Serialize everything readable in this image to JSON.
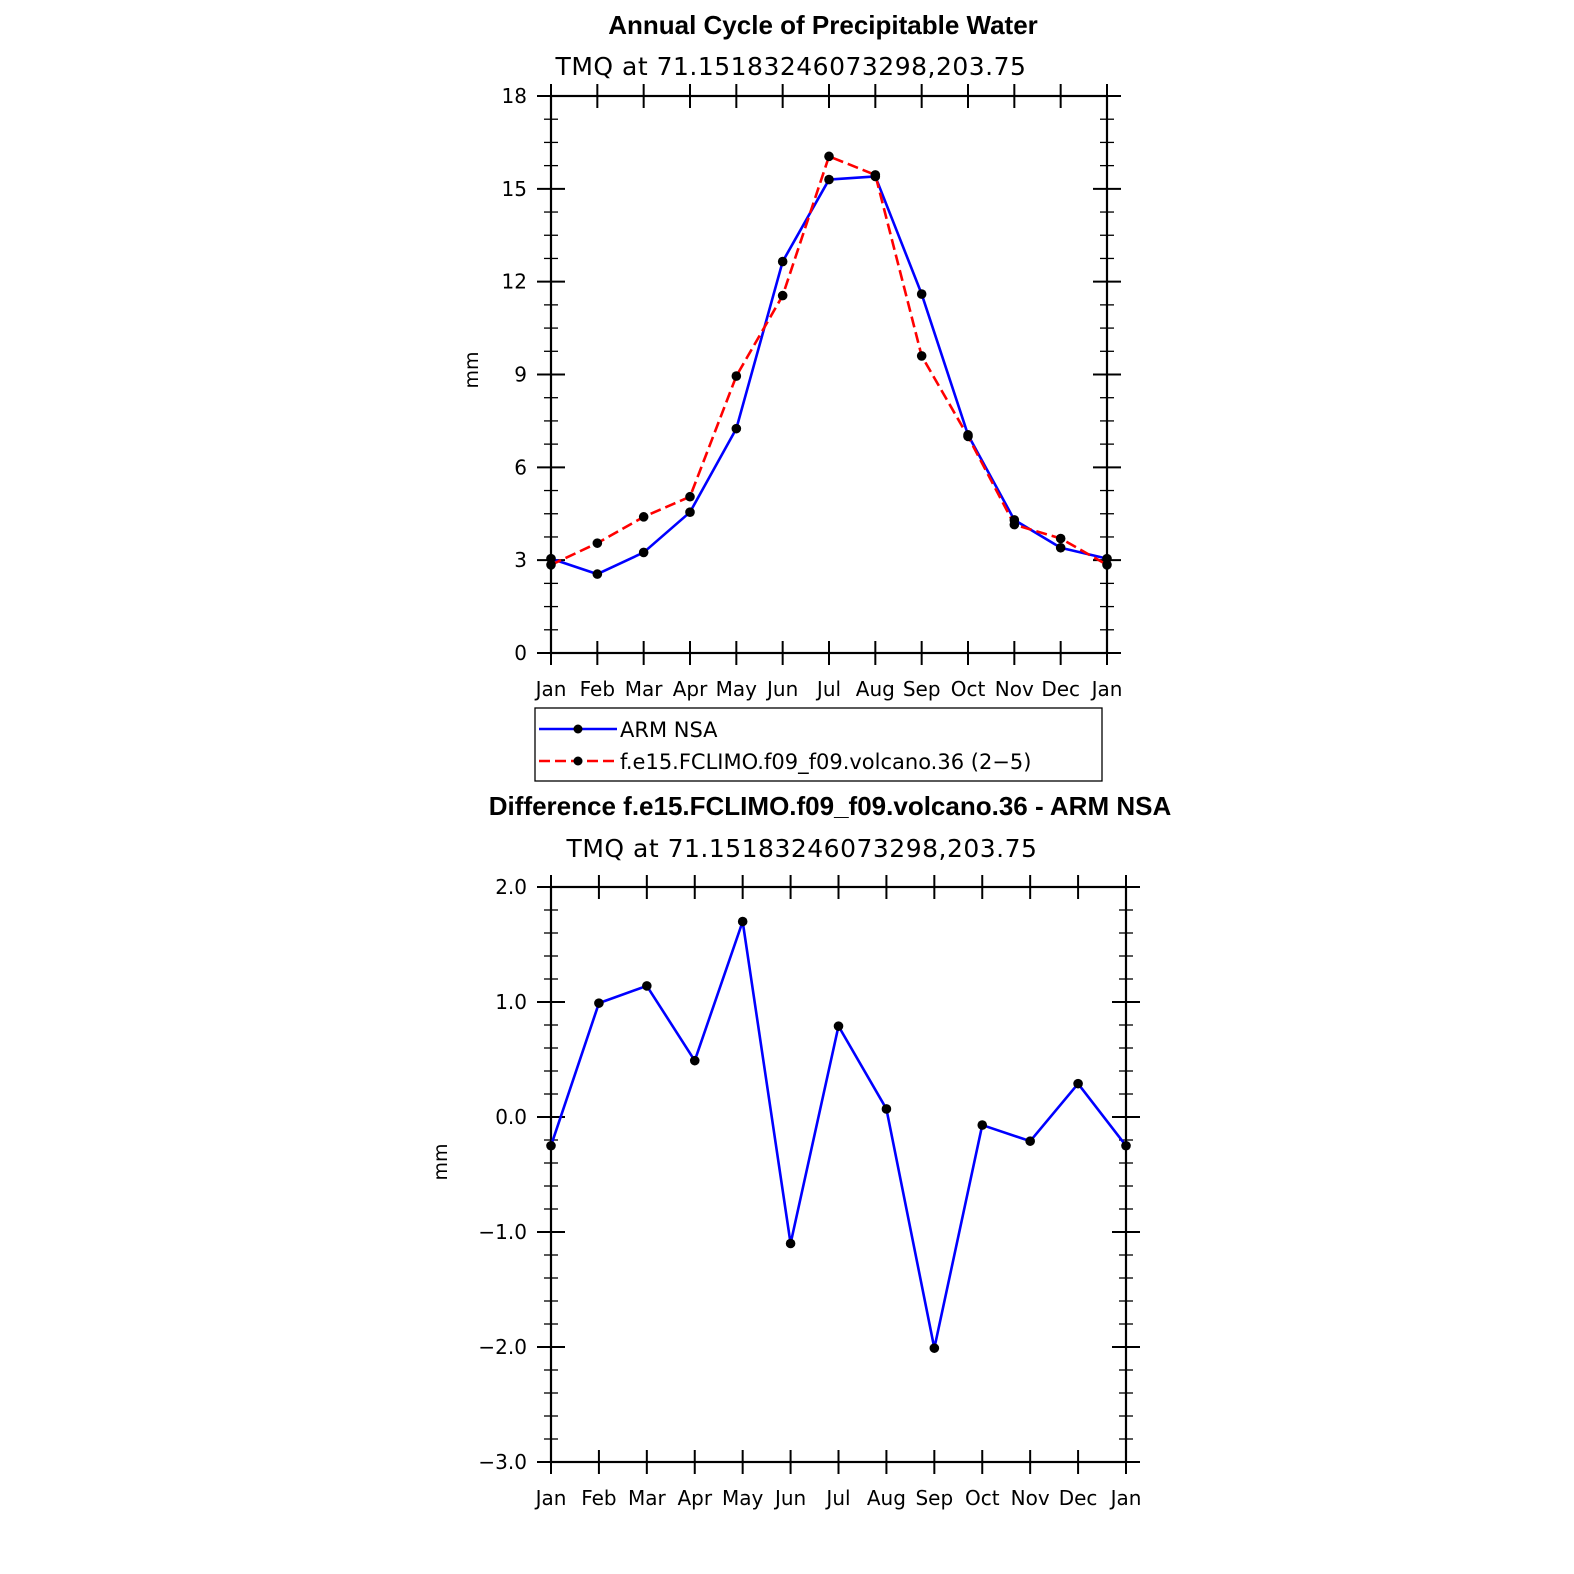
{
  "colors": {
    "arm": "#0000ff",
    "model": "#ff0000",
    "marker": "#000000"
  },
  "chart_data": [
    {
      "type": "line",
      "title": "Annual Cycle of Precipitable Water",
      "subtitle": "TMQ at 71.15183246073298,203.75",
      "xlabel": "",
      "ylabel": "mm",
      "categories": [
        "Jan",
        "Feb",
        "Mar",
        "Apr",
        "May",
        "Jun",
        "Jul",
        "Aug",
        "Sep",
        "Oct",
        "Nov",
        "Dec",
        "Jan"
      ],
      "ylim": [
        0,
        18
      ],
      "yticks": [
        0,
        3,
        6,
        9,
        12,
        15,
        18
      ],
      "ytick_labels": [
        "0",
        "3",
        "6",
        "9",
        "12",
        "15",
        "18"
      ],
      "series": [
        {
          "name": "ARM NSA",
          "style": "solid",
          "color": "#0000ff",
          "values": [
            3.05,
            2.55,
            3.25,
            4.55,
            7.25,
            12.65,
            15.3,
            15.4,
            11.6,
            7.05,
            4.3,
            3.4,
            3.05
          ]
        },
        {
          "name": "f.e15.FCLIMO.f09_f09.volcano.36 (2−5)",
          "style": "dashed",
          "color": "#ff0000",
          "values": [
            2.85,
            3.55,
            4.4,
            5.05,
            8.95,
            11.55,
            16.05,
            15.45,
            9.6,
            7.0,
            4.15,
            3.7,
            2.85
          ]
        }
      ],
      "legend": "below"
    },
    {
      "type": "line",
      "title": "Difference f.e15.FCLIMO.f09_f09.volcano.36 - ARM NSA",
      "subtitle": "TMQ at 71.15183246073298,203.75",
      "xlabel": "",
      "ylabel": "mm",
      "categories": [
        "Jan",
        "Feb",
        "Mar",
        "Apr",
        "May",
        "Jun",
        "Jul",
        "Aug",
        "Sep",
        "Oct",
        "Nov",
        "Dec",
        "Jan"
      ],
      "ylim": [
        -3.0,
        2.0
      ],
      "yticks": [
        -3.0,
        -2.0,
        -1.0,
        0.0,
        1.0,
        2.0
      ],
      "ytick_labels": [
        "−3.0",
        "−2.0",
        "−1.0",
        "0.0",
        "1.0",
        "2.0"
      ],
      "series": [
        {
          "name": "Difference",
          "style": "solid",
          "color": "#0000ff",
          "values": [
            -0.25,
            0.99,
            1.14,
            0.49,
            1.7,
            -1.1,
            0.79,
            0.07,
            -2.01,
            -0.07,
            -0.21,
            0.29,
            -0.25
          ]
        }
      ]
    }
  ]
}
